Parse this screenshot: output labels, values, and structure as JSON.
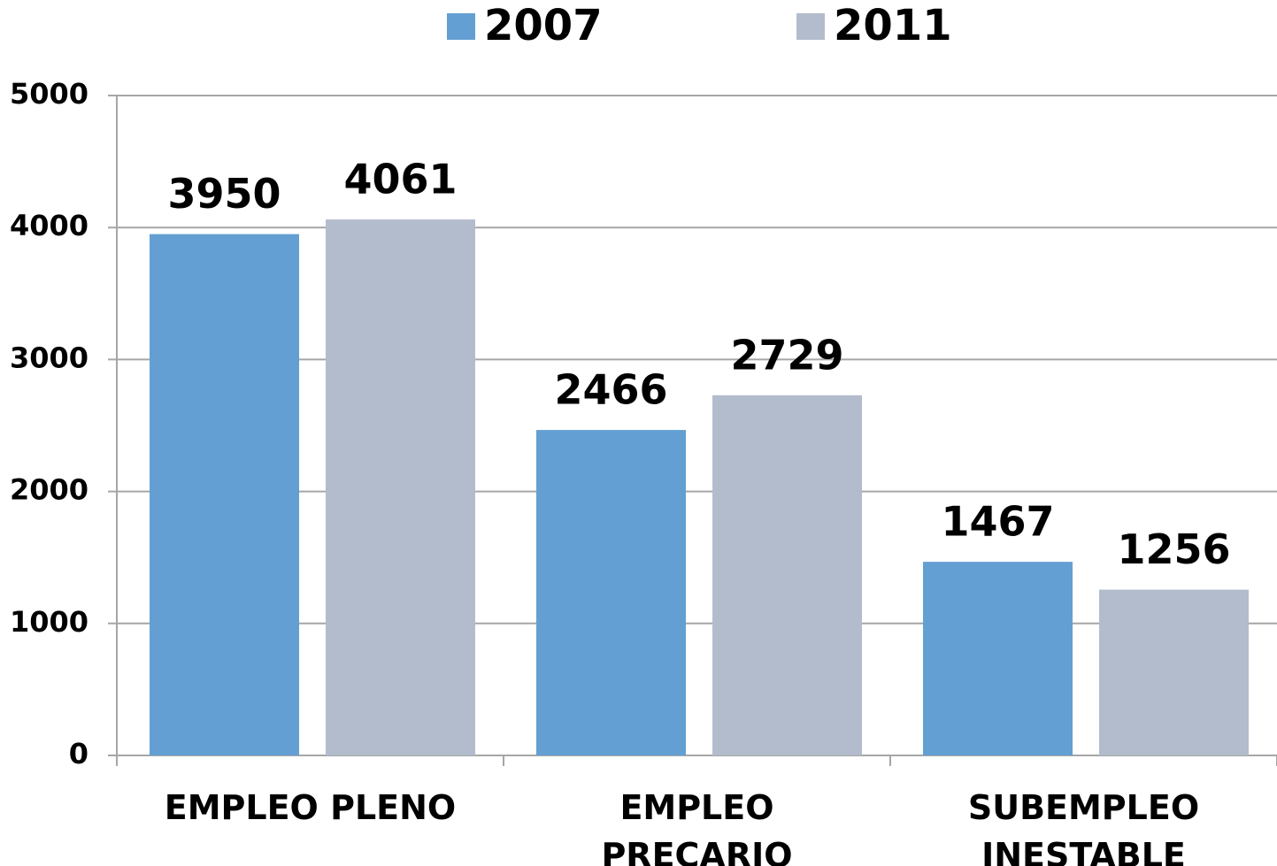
{
  "chart_data": {
    "type": "bar",
    "categories": [
      "EMPLEO PLENO",
      "EMPLEO PRECARIO",
      "SUBEMPLEO INESTABLE"
    ],
    "series": [
      {
        "name": "2007",
        "color": "#639fd2",
        "values": [
          3950,
          2466,
          1467
        ]
      },
      {
        "name": "2011",
        "color": "#b3bccc",
        "values": [
          4061,
          2729,
          1256
        ]
      }
    ],
    "ylim": [
      0,
      5000
    ],
    "yticks": [
      0,
      1000,
      2000,
      3000,
      4000,
      5000
    ],
    "grid": true,
    "legend": "top"
  }
}
